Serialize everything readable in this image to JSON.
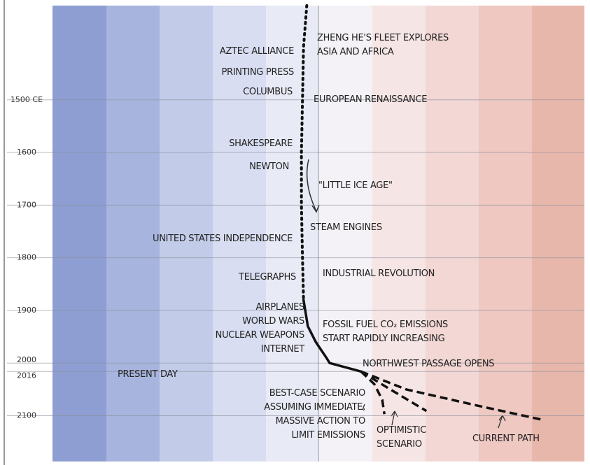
{
  "chart_data": {
    "type": "line",
    "orientation": "vertical",
    "xlim": [
      1321,
      2187
    ],
    "xticks": [
      {
        "value": 1500,
        "label": "1500 CE"
      },
      1600,
      1700,
      1800,
      1900,
      2000,
      2016,
      2100
    ],
    "ylim": [
      -4.75,
      5.25
    ],
    "grid": true,
    "series": [
      {
        "color": "#111111",
        "style": "dotted",
        "x": [
          1321,
          1400,
          1500,
          1600,
          1700,
          1800,
          1880
        ],
        "values": [
          0.03,
          -0.03,
          -0.05,
          -0.07,
          -0.07,
          -0.05,
          -0.03
        ]
      },
      {
        "color": "#111111",
        "style": "solid",
        "x": [
          1880,
          1930,
          1960,
          1990,
          2000,
          2016
        ],
        "values": [
          -0.03,
          0.05,
          0.2,
          0.4,
          0.46,
          1.05
        ]
      },
      {
        "color": "#111111",
        "style": "dashed",
        "x": [
          2016,
          2040,
          2070,
          2097
        ],
        "values": [
          1.05,
          1.3,
          1.45,
          1.49
        ]
      },
      {
        "color": "#111111",
        "style": "dashed",
        "x": [
          2016,
          2050,
          2091
        ],
        "values": [
          1.05,
          1.6,
          2.28
        ]
      },
      {
        "color": "#111111",
        "style": "dashed",
        "x": [
          2016,
          2050,
          2080,
          2108
        ],
        "values": [
          1.05,
          1.9,
          3.2,
          4.47
        ]
      }
    ],
    "annotations": [
      "AZTEC ALLIANCE",
      "PRINTING PRESS",
      "COLUMBUS",
      "ZHENG HE'S FLEET EXPLORES\nASIA AND AFRICA",
      "EUROPEAN RENAISSANCE",
      "SHAKESPEARE",
      "NEWTON",
      "\"LITTLE ICE AGE\"",
      "STEAM ENGINES",
      "UNITED STATES INDEPENDENCE",
      "TELEGRAPHS",
      "INDUSTRIAL REVOLUTION",
      "AIRPLANES\nWORLD WARS\nNUCLEAR WEAPONS\nINTERNET",
      "FOSSIL FUEL CO₂ EMISSIONS\nSTART RAPIDLY INCREASING",
      "NORTHWEST PASSAGE OPENS",
      "PRESENT DAY",
      "BEST-CASE SCENARIO\nASSUMING IMMEDIATE,\nMASSIVE ACTION TO\nLIMIT EMISSIONS",
      "OPTIMISTIC\nSCENARIO",
      "CURRENT PATH"
    ]
  }
}
